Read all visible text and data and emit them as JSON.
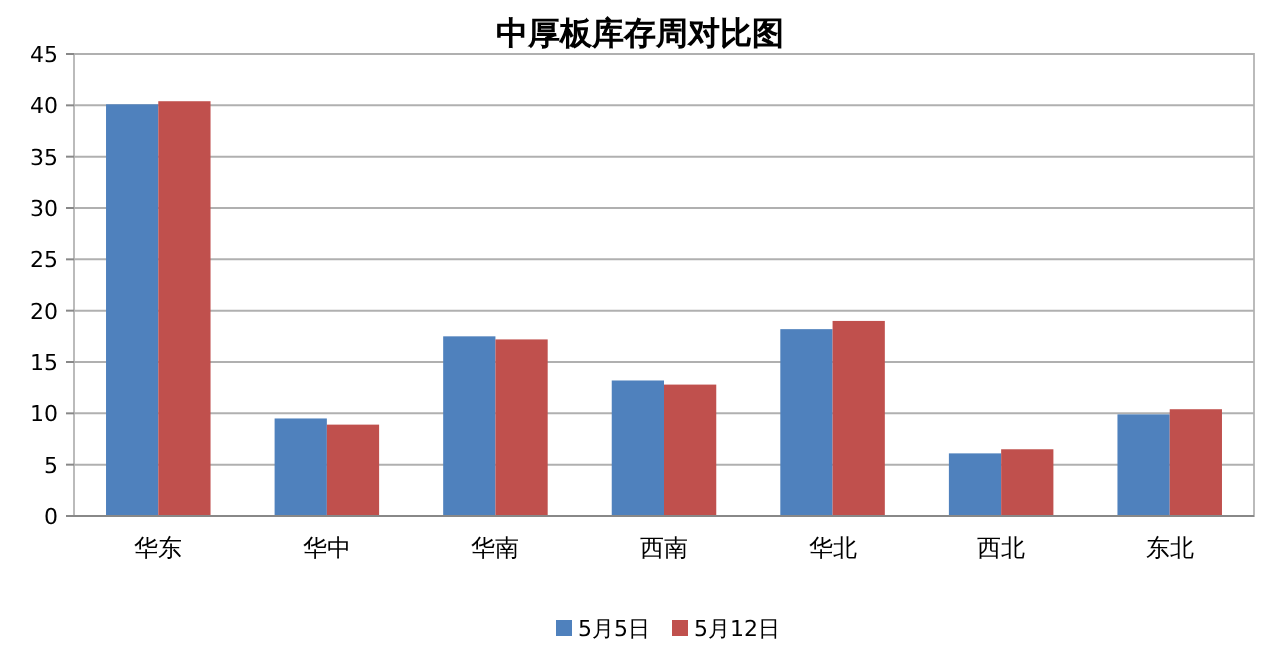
{
  "chart_data": {
    "type": "bar",
    "title": "中厚板库存周对比图",
    "categories": [
      "华东",
      "华中",
      "华南",
      "西南",
      "华北",
      "西北",
      "东北"
    ],
    "series": [
      {
        "name": "5月5日",
        "color": "#4f81bd",
        "values": [
          40.1,
          9.5,
          17.5,
          13.2,
          18.2,
          6.1,
          9.9
        ]
      },
      {
        "name": "5月12日",
        "color": "#c0504d",
        "values": [
          40.4,
          8.9,
          17.2,
          12.8,
          19.0,
          6.5,
          10.4
        ]
      }
    ],
    "ylim": [
      0,
      45
    ],
    "yticks": [
      0,
      5,
      10,
      15,
      20,
      25,
      30,
      35,
      40,
      45
    ],
    "grid": "y",
    "legend": "bottom"
  }
}
